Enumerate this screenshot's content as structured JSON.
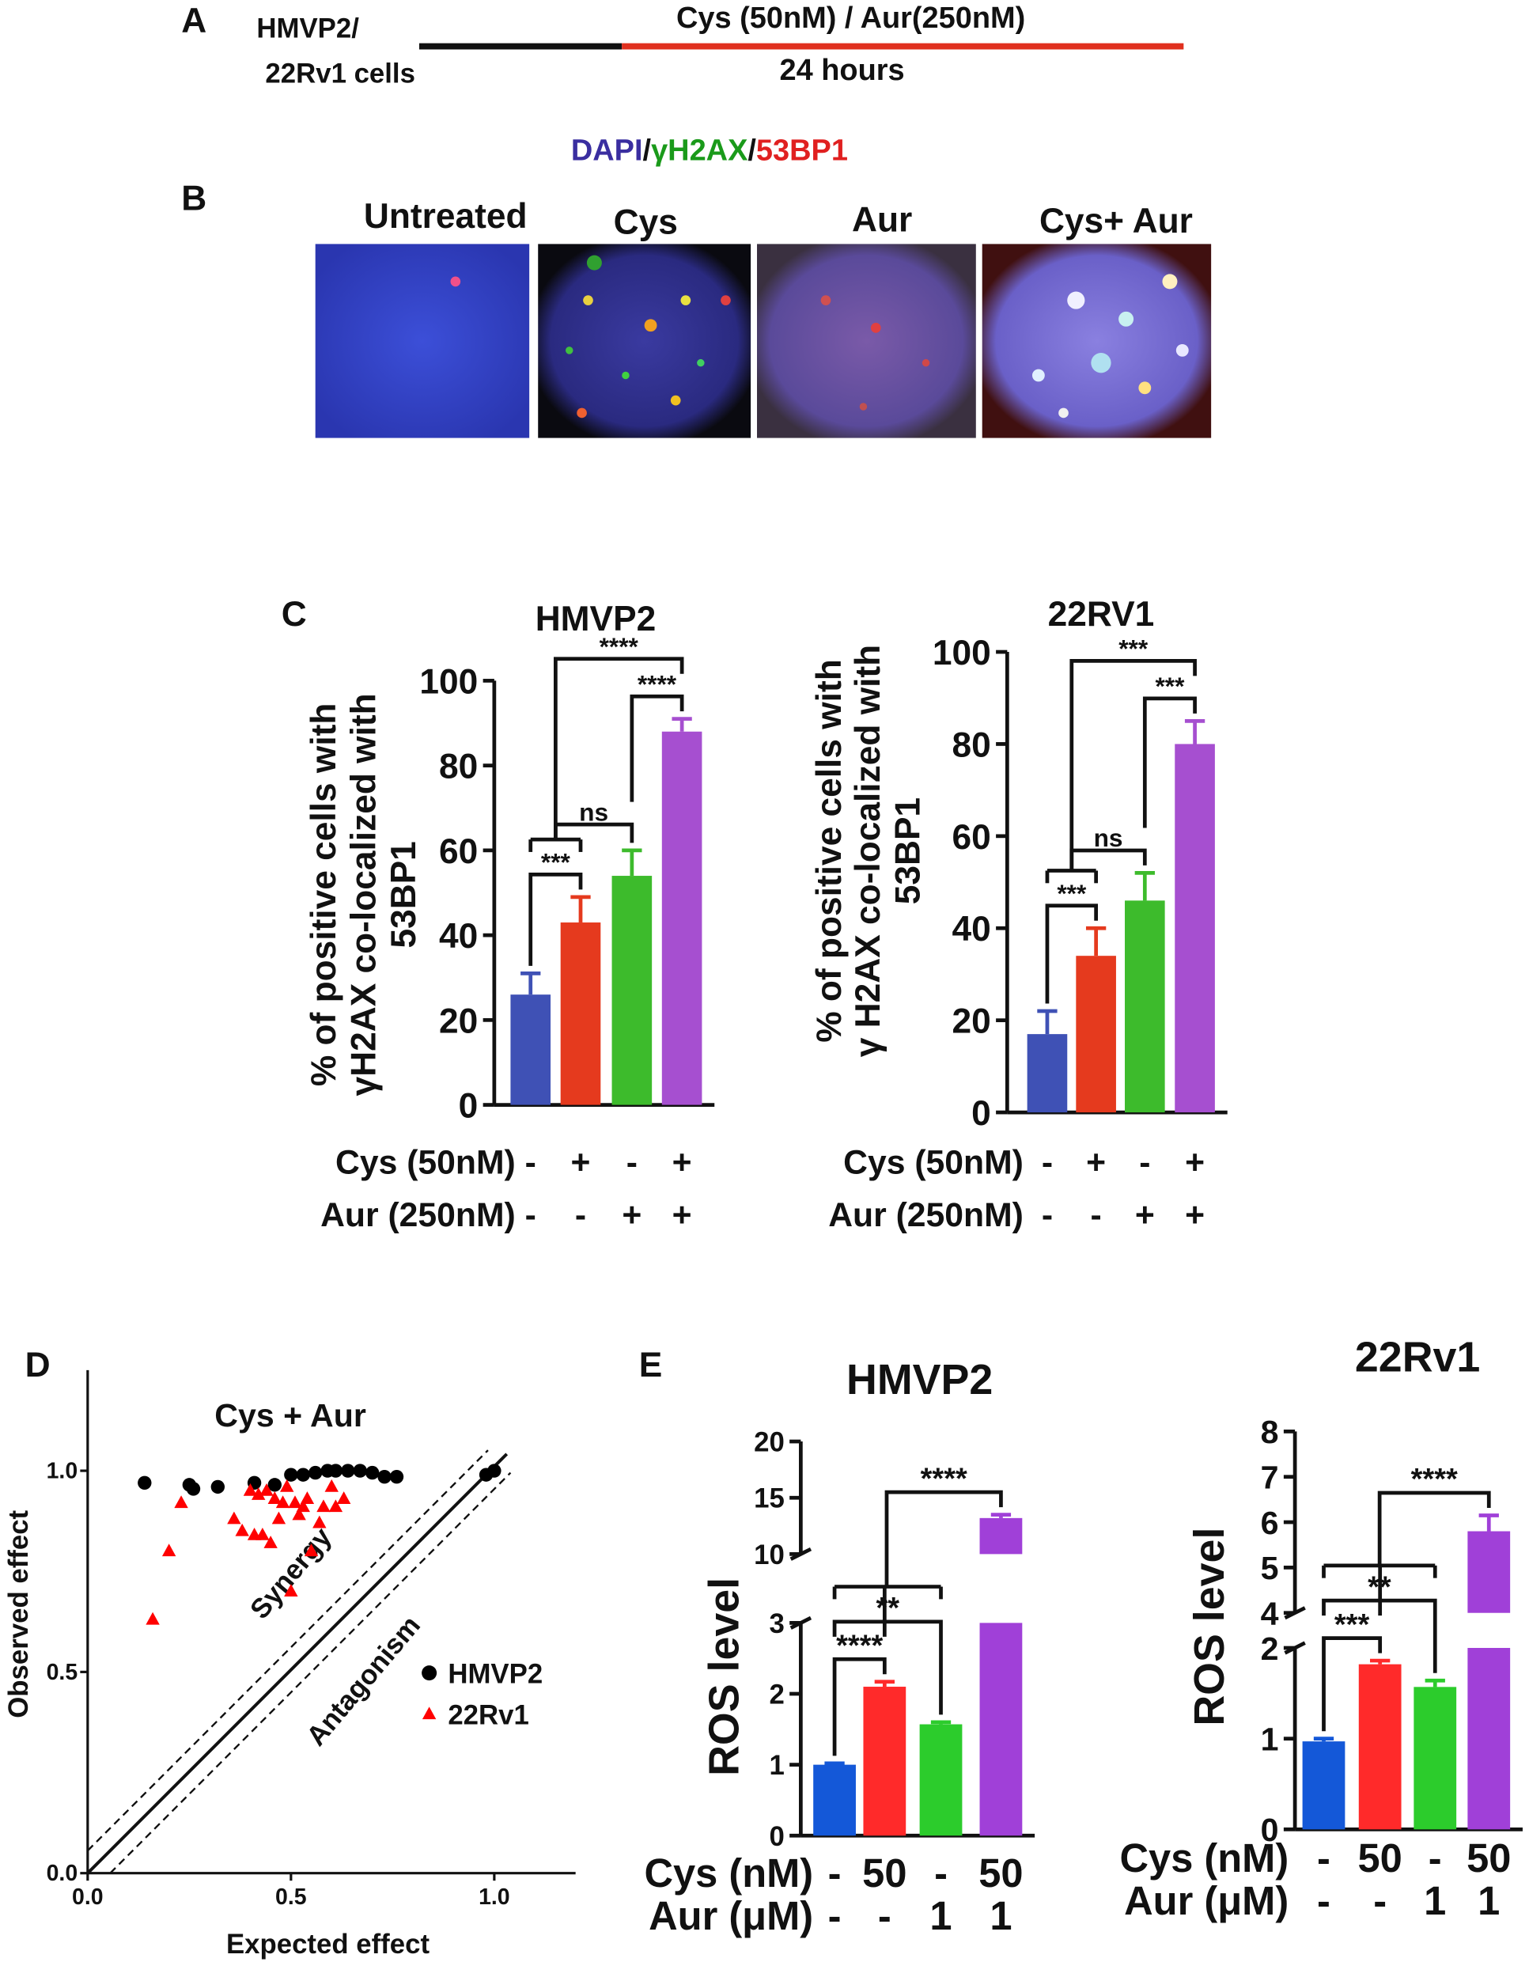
{
  "panel_a": {
    "label": "A",
    "cells": [
      "HMVP2/",
      "22Rv1 cells"
    ],
    "treatment": "Cys (50nM) / Aur(250nM)",
    "duration": "24 hours"
  },
  "panel_b": {
    "label": "B",
    "stain": [
      "DAPI",
      "/",
      "γH2AX",
      "/",
      "53BP1"
    ],
    "images": [
      "Untreated",
      "Cys",
      "Aur",
      "Cys+ Aur"
    ]
  },
  "chart_data": [
    {
      "type": "bar",
      "panel": "C",
      "title": "HMVP2",
      "ylabel": [
        "% of positive cells with",
        "γH2AX co-localized with",
        "53BP1"
      ],
      "values": [
        26,
        43,
        54,
        88
      ],
      "errors": [
        5,
        6,
        6,
        3
      ],
      "colors": [
        "#3f51b5",
        "#e53a1e",
        "#3dbb2c",
        "#a64fd0"
      ],
      "ylim": [
        0,
        100
      ],
      "yticks": [
        0,
        20,
        40,
        60,
        80,
        100
      ],
      "rows": [
        {
          "name": "Cys (50nM)",
          "values": [
            "-",
            "+",
            "-",
            "+"
          ]
        },
        {
          "name": "Aur (250nM)",
          "values": [
            "-",
            "-",
            "+",
            "+"
          ]
        }
      ],
      "brackets": [
        {
          "groups": [
            [
              0
            ],
            [
              1
            ]
          ],
          "label": "***"
        },
        {
          "groups": [
            [
              0,
              1
            ],
            [
              2
            ]
          ],
          "label": "ns"
        },
        {
          "groups": [
            [
              2
            ],
            [
              3
            ]
          ],
          "label": "****"
        },
        {
          "groups": [
            [
              0,
              1
            ],
            [
              3
            ]
          ],
          "label": "****"
        }
      ]
    },
    {
      "type": "bar",
      "title": "22RV1",
      "ylabel": [
        "% of positive cells with",
        "γ H2AX co-localized with",
        "53BP1"
      ],
      "values": [
        17,
        34,
        46,
        80
      ],
      "errors": [
        5,
        6,
        6,
        5
      ],
      "colors": [
        "#3f51b5",
        "#e53a1e",
        "#3dbb2c",
        "#a64fd0"
      ],
      "ylim": [
        0,
        100
      ],
      "yticks": [
        0,
        20,
        40,
        60,
        80,
        100
      ],
      "rows": [
        {
          "name": "Cys (50nM)",
          "values": [
            "-",
            "+",
            "-",
            "+"
          ]
        },
        {
          "name": "Aur (250nM)",
          "values": [
            "-",
            "-",
            "+",
            "+"
          ]
        }
      ],
      "brackets": [
        {
          "groups": [
            [
              0
            ],
            [
              1
            ]
          ],
          "label": "***"
        },
        {
          "groups": [
            [
              0,
              1
            ],
            [
              2
            ]
          ],
          "label": "ns"
        },
        {
          "groups": [
            [
              2
            ],
            [
              3
            ]
          ],
          "label": "***"
        },
        {
          "groups": [
            [
              0,
              1
            ],
            [
              3
            ]
          ],
          "label": "***"
        }
      ]
    },
    {
      "type": "scatter",
      "panel": "D",
      "title": "Cys + Aur",
      "xlabel": "Expected effect",
      "ylabel": "Observed effect",
      "xlim": [
        0,
        1.2
      ],
      "ylim": [
        0,
        1.25
      ],
      "xticks": [
        {
          "value": 0,
          "label": "0.0"
        },
        {
          "value": 0.5,
          "label": "0.5"
        },
        {
          "value": 1,
          "label": "1.0"
        }
      ],
      "yticks": [
        {
          "value": 0,
          "label": "0.0"
        },
        {
          "value": 0.5,
          "label": "0.5"
        },
        {
          "value": 1,
          "label": "1.0"
        }
      ],
      "annotations": [
        "Synergy",
        "Antagonism"
      ],
      "series": [
        {
          "name": "HMVP2",
          "color": "#000000",
          "marker": "circle",
          "x": [
            0.14,
            0.25,
            0.26,
            0.32,
            0.41,
            0.46,
            0.5,
            0.53,
            0.56,
            0.59,
            0.61,
            0.64,
            0.67,
            0.7,
            0.73,
            0.76,
            0.98,
            1.0
          ],
          "y": [
            0.97,
            0.965,
            0.955,
            0.96,
            0.97,
            0.965,
            0.99,
            0.99,
            0.995,
            1.0,
            1.0,
            1.0,
            1.0,
            0.995,
            0.985,
            0.985,
            0.99,
            1.0
          ]
        },
        {
          "name": "22Rv1",
          "color": "#ff0000",
          "marker": "triangle",
          "x": [
            0.16,
            0.2,
            0.23,
            0.36,
            0.38,
            0.4,
            0.41,
            0.42,
            0.43,
            0.44,
            0.45,
            0.46,
            0.47,
            0.48,
            0.49,
            0.5,
            0.51,
            0.52,
            0.53,
            0.54,
            0.55,
            0.57,
            0.58,
            0.6,
            0.61,
            0.63
          ],
          "y": [
            0.63,
            0.8,
            0.92,
            0.88,
            0.85,
            0.95,
            0.84,
            0.94,
            0.84,
            0.95,
            0.82,
            0.93,
            0.88,
            0.92,
            0.96,
            0.7,
            0.92,
            0.89,
            0.91,
            0.93,
            0.8,
            0.87,
            0.91,
            0.96,
            0.91,
            0.93
          ]
        }
      ]
    },
    {
      "type": "bar",
      "panel": "E",
      "title": "HMVP2",
      "ylabel": "ROS level",
      "values": [
        1.0,
        2.1,
        1.57,
        13.2
      ],
      "errors": [
        0.02,
        0.07,
        0.03,
        0.3
      ],
      "colors": [
        "#1458d8",
        "#ff2a2a",
        "#2ccc2c",
        "#a040d8"
      ],
      "ylim_segments": [
        [
          0,
          3
        ],
        [
          10,
          20
        ]
      ],
      "yticks": [
        0,
        1,
        2,
        3,
        10,
        15,
        20
      ],
      "rows": [
        {
          "name": "Cys (nM)",
          "values": [
            "-",
            "50",
            "-",
            "50"
          ]
        },
        {
          "name": "Aur (μM)",
          "values": [
            "-",
            "-",
            "1",
            "1"
          ]
        }
      ],
      "brackets": [
        {
          "groups": [
            [
              0
            ],
            [
              1
            ]
          ],
          "label": "****"
        },
        {
          "groups": [
            [
              0
            ],
            [
              2
            ]
          ],
          "label": "**"
        },
        {
          "groups": [
            [
              0,
              1,
              2
            ],
            [
              3
            ]
          ],
          "label": "****"
        }
      ]
    },
    {
      "type": "bar",
      "title": "22Rv1",
      "ylabel": "ROS level",
      "values": [
        0.97,
        1.82,
        1.57,
        5.8
      ],
      "errors": [
        0.03,
        0.04,
        0.07,
        0.35
      ],
      "colors": [
        "#1458d8",
        "#ff2a2a",
        "#2ccc2c",
        "#a040d8"
      ],
      "ylim_segments": [
        [
          0,
          2
        ],
        [
          4,
          8
        ]
      ],
      "yticks": [
        0,
        1,
        2,
        4,
        5,
        6,
        7,
        8
      ],
      "rows": [
        {
          "name": "Cys (nM)",
          "values": [
            "-",
            "50",
            "-",
            "50"
          ]
        },
        {
          "name": "Aur (μM)",
          "values": [
            "-",
            "-",
            "1",
            "1"
          ]
        }
      ],
      "brackets": [
        {
          "groups": [
            [
              0
            ],
            [
              1
            ]
          ],
          "label": "***"
        },
        {
          "groups": [
            [
              0
            ],
            [
              2
            ]
          ],
          "label": "**"
        },
        {
          "groups": [
            [
              0,
              1,
              2
            ],
            [
              3
            ]
          ],
          "label": "****"
        }
      ]
    }
  ]
}
